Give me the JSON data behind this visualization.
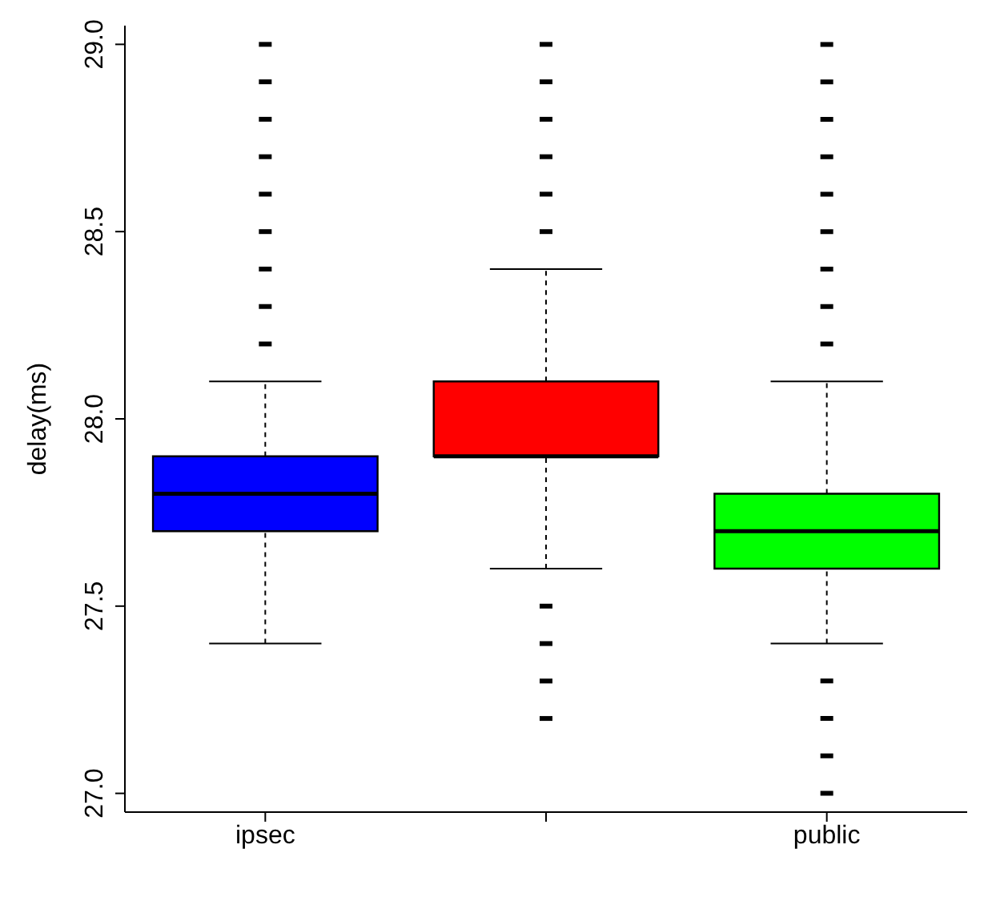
{
  "chart_data": {
    "type": "box",
    "ylabel": "delay(ms)",
    "categories": [
      "ipsec",
      null,
      "public"
    ],
    "colors": [
      "#0000ff",
      "#ff0000",
      "#00ff00"
    ],
    "boxes": [
      {
        "low": 27.4,
        "q1": 27.7,
        "median": 27.8,
        "q3": 27.9,
        "high": 28.1,
        "outliers": [
          28.2,
          28.3,
          28.4,
          28.5,
          28.6,
          28.7,
          28.8,
          28.9,
          29.0
        ]
      },
      {
        "low": 27.6,
        "q1": 27.9,
        "median": 27.9,
        "q3": 28.1,
        "high": 28.4,
        "outliers": [
          27.2,
          27.3,
          27.4,
          27.5,
          28.5,
          28.6,
          28.7,
          28.8,
          28.9,
          29.0
        ]
      },
      {
        "low": 27.4,
        "q1": 27.6,
        "median": 27.7,
        "q3": 27.8,
        "high": 28.1,
        "outliers": [
          27.0,
          27.1,
          27.2,
          27.3,
          28.2,
          28.3,
          28.4,
          28.5,
          28.6,
          28.7,
          28.8,
          28.9,
          29.0
        ]
      }
    ],
    "ylim": [
      26.95,
      29.05
    ],
    "yticks": [
      {
        "value": 27,
        "label": "27.0"
      },
      27.5,
      {
        "value": 28,
        "label": "28.0"
      },
      28.5,
      {
        "value": 29,
        "label": "29.0"
      }
    ]
  }
}
